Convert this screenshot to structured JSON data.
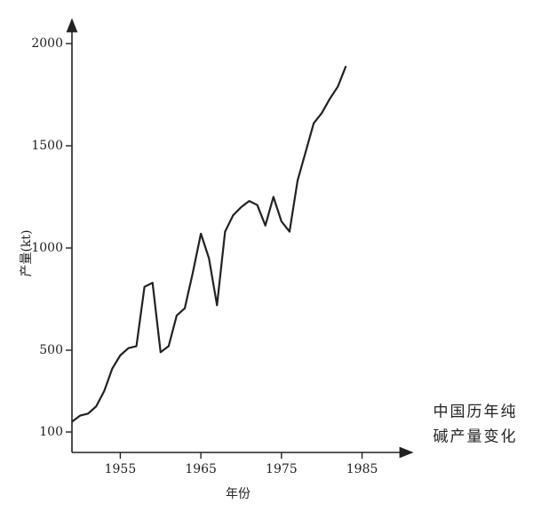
{
  "chart_data": {
    "type": "line",
    "x_label": "年份",
    "y_label": "产量(kt)",
    "annotation": [
      "中国历年纯",
      "碱产量变化"
    ],
    "x": [
      1949,
      1950,
      1951,
      1952,
      1953,
      1954,
      1955,
      1956,
      1957,
      1958,
      1959,
      1960,
      1961,
      1962,
      1963,
      1964,
      1965,
      1966,
      1967,
      1968,
      1969,
      1970,
      1971,
      1972,
      1973,
      1974,
      1975,
      1976,
      1977,
      1978,
      1979,
      1980,
      1981,
      1982,
      1983
    ],
    "series": [
      {
        "color": "#222222",
        "values": [
          150,
          180,
          190,
          225,
          300,
          410,
          475,
          510,
          520,
          810,
          830,
          490,
          520,
          670,
          705,
          880,
          1070,
          950,
          720,
          1080,
          1160,
          1200,
          1230,
          1210,
          1110,
          1250,
          1130,
          1080,
          1330,
          1470,
          1610,
          1660,
          1730,
          1790,
          1890
        ]
      }
    ],
    "xlim": [
      1949,
      1991
    ],
    "ylim": [
      0,
      2100
    ],
    "xticks": [
      1955,
      1965,
      1975,
      1985
    ],
    "yticks": [
      100,
      500,
      1000,
      1500,
      2000
    ]
  }
}
